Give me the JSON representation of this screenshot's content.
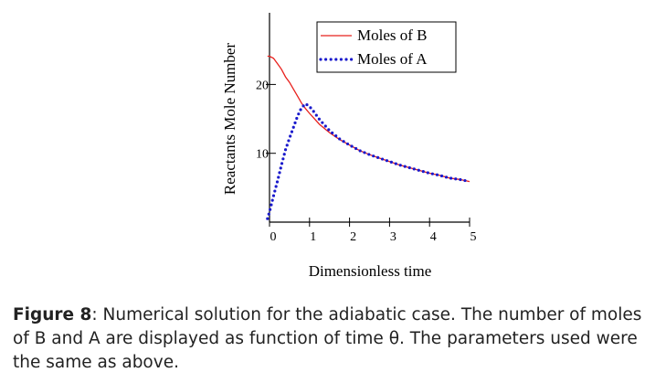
{
  "chart_data": {
    "type": "line",
    "xlabel": "Dimensionless time",
    "ylabel": "Reactants Mole Number",
    "xlim": [
      0,
      5
    ],
    "ylim": [
      0,
      30
    ],
    "x_ticks": [
      0,
      1,
      2,
      3,
      4,
      5
    ],
    "y_tick_labels": [
      {
        "value": 10,
        "label": "10"
      },
      {
        "value": 20,
        "label": "20"
      }
    ],
    "legend_position": "top-right",
    "series": [
      {
        "name": "Moles of B",
        "color": "#e8201c",
        "style": "solid",
        "points": [
          [
            -0.05,
            24.1
          ],
          [
            0,
            24.1
          ],
          [
            0.1,
            23.8
          ],
          [
            0.2,
            23.0
          ],
          [
            0.3,
            22.2
          ],
          [
            0.4,
            21.1
          ],
          [
            0.5,
            20.3
          ],
          [
            0.6,
            19.3
          ],
          [
            0.7,
            18.3
          ],
          [
            0.8,
            17.3
          ],
          [
            0.9,
            16.5
          ],
          [
            1.0,
            15.8
          ],
          [
            1.25,
            14.2
          ],
          [
            1.5,
            13.0
          ],
          [
            1.75,
            12.0
          ],
          [
            2.0,
            11.2
          ],
          [
            2.25,
            10.4
          ],
          [
            2.5,
            9.8
          ],
          [
            2.75,
            9.3
          ],
          [
            3.0,
            8.8
          ],
          [
            3.25,
            8.3
          ],
          [
            3.5,
            7.9
          ],
          [
            3.75,
            7.5
          ],
          [
            4.0,
            7.1
          ],
          [
            4.25,
            6.8
          ],
          [
            4.5,
            6.4
          ],
          [
            4.75,
            6.2
          ],
          [
            5.0,
            5.9
          ]
        ]
      },
      {
        "name": "Moles of A",
        "color": "#1a1acc",
        "style": "dotted",
        "points": [
          [
            -0.05,
            0.5
          ],
          [
            0,
            1.5
          ],
          [
            0.1,
            3.8
          ],
          [
            0.2,
            6.0
          ],
          [
            0.3,
            8.3
          ],
          [
            0.4,
            10.5
          ],
          [
            0.5,
            12.2
          ],
          [
            0.6,
            13.8
          ],
          [
            0.7,
            15.4
          ],
          [
            0.8,
            16.6
          ],
          [
            0.9,
            17.2
          ],
          [
            1.0,
            16.8
          ],
          [
            1.1,
            16.1
          ],
          [
            1.25,
            14.9
          ],
          [
            1.5,
            13.3
          ],
          [
            1.75,
            12.1
          ],
          [
            2.0,
            11.2
          ],
          [
            2.25,
            10.4
          ],
          [
            2.5,
            9.8
          ],
          [
            2.75,
            9.3
          ],
          [
            3.0,
            8.8
          ],
          [
            3.25,
            8.3
          ],
          [
            3.5,
            7.9
          ],
          [
            3.75,
            7.5
          ],
          [
            4.0,
            7.1
          ],
          [
            4.25,
            6.8
          ],
          [
            4.5,
            6.4
          ],
          [
            4.75,
            6.2
          ],
          [
            5.0,
            5.9
          ]
        ]
      }
    ]
  },
  "caption": {
    "label": "Figure 8",
    "text": ": Numerical solution for the adiabatic case. The number of moles of B and A are displayed  as function of time θ. The parameters used were the same as above."
  }
}
